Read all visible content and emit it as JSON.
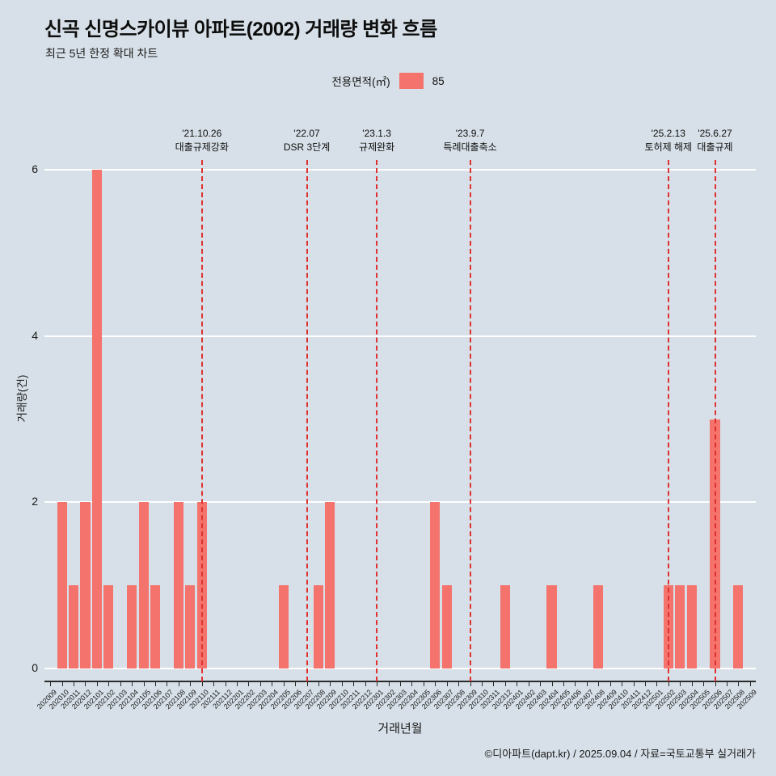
{
  "header": {
    "title": "신곡 신명스카이뷰 아파트(2002) 거래량 변화 흐름",
    "subtitle": "최근 5년 한정 확대 차트"
  },
  "legend": {
    "label": "전용면적(㎡)",
    "value": "85",
    "swatch_color": "#f4736c"
  },
  "footer": {
    "credit": "©디아파트(dapt.kr) / 2025.09.04 / 자료=국토교통부 실거래가"
  },
  "chart_data": {
    "type": "bar",
    "title": "신곡 신명스카이뷰 아파트(2002) 거래량 변화 흐름",
    "subtitle": "최근 5년 한정 확대 차트",
    "xlabel": "거래년월",
    "ylabel": "거래량(건)",
    "ylim": [
      0,
      6
    ],
    "yticks": [
      0,
      2,
      4,
      6
    ],
    "grid": true,
    "legend_position": "top-center",
    "series_name": "85",
    "bar_color": "#f4736c",
    "annotation_line_color": "#e03131",
    "background_color": "#d7e0e8",
    "categories": [
      "202009",
      "202010",
      "202011",
      "202012",
      "202101",
      "202102",
      "202103",
      "202104",
      "202105",
      "202106",
      "202107",
      "202108",
      "202109",
      "202110",
      "202111",
      "202112",
      "202201",
      "202202",
      "202203",
      "202204",
      "202205",
      "202206",
      "202207",
      "202208",
      "202209",
      "202210",
      "202211",
      "202212",
      "202301",
      "202302",
      "202303",
      "202304",
      "202305",
      "202306",
      "202307",
      "202308",
      "202309",
      "202310",
      "202311",
      "202312",
      "202401",
      "202402",
      "202403",
      "202404",
      "202405",
      "202406",
      "202407",
      "202408",
      "202409",
      "202410",
      "202411",
      "202412",
      "202501",
      "202502",
      "202503",
      "202504",
      "202505",
      "202506",
      "202507",
      "202508",
      "202509"
    ],
    "values": [
      0,
      2,
      1,
      2,
      6,
      1,
      0,
      1,
      2,
      1,
      0,
      2,
      1,
      2,
      0,
      0,
      0,
      0,
      0,
      0,
      1,
      0,
      0,
      1,
      2,
      0,
      0,
      0,
      0,
      0,
      0,
      0,
      0,
      2,
      1,
      0,
      0,
      0,
      0,
      1,
      0,
      0,
      0,
      1,
      0,
      0,
      0,
      1,
      0,
      0,
      0,
      0,
      0,
      1,
      1,
      1,
      0,
      3,
      0,
      1,
      0
    ],
    "annotations": [
      {
        "date": "'21.10.26",
        "label": "대출규제강화",
        "month": "202110"
      },
      {
        "date": "'22.07",
        "label": "DSR 3단계",
        "month": "202207"
      },
      {
        "date": "'23.1.3",
        "label": "규제완화",
        "month": "202301"
      },
      {
        "date": "'23.9.7",
        "label": "특례대출축소",
        "month": "202309"
      },
      {
        "date": "'25.2.13",
        "label": "토허제 해제",
        "month": "202502"
      },
      {
        "date": "'25.6.27",
        "label": "대출규제",
        "month": "202506"
      }
    ]
  }
}
